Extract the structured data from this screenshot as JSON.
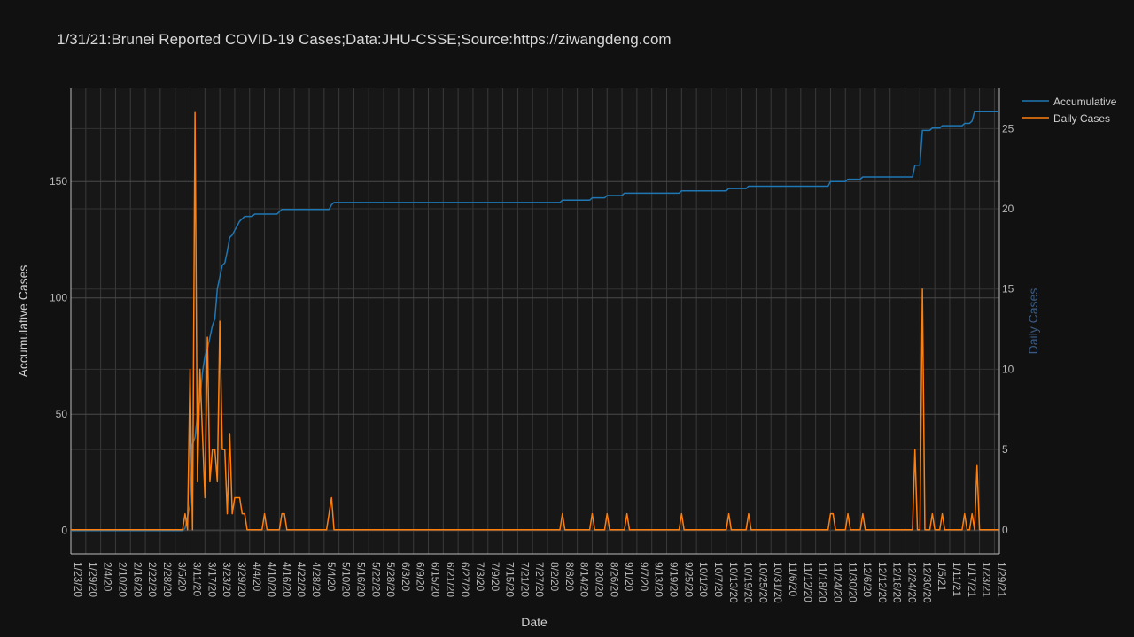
{
  "colors": {
    "background": "#111111",
    "plot_background": "#171717",
    "grid": "#3a3a3a",
    "text": "#d0d0d0",
    "tick_text": "#b8b8b8",
    "accumulative": "#1f77b4",
    "daily": "#ff7f0e",
    "y2_title": "#3a5a80"
  },
  "chart_data": {
    "type": "line",
    "title": "1/31/21:Brunei Reported COVID-19 Cases;Data:JHU-CSSE;Source:https://ziwangdeng.com",
    "xlabel": "Date",
    "ylabel": "Accumulative Cases",
    "y2label": "Daily Cases",
    "x_range": [
      "1/23/20",
      "1/31/21"
    ],
    "ylim": [
      -10,
      190
    ],
    "y2lim": [
      -1.5,
      27.5
    ],
    "y_ticks": [
      0,
      50,
      100,
      150
    ],
    "y2_ticks": [
      0,
      5,
      10,
      15,
      20,
      25
    ],
    "x_tick_labels": [
      "1/23/20",
      "1/29/20",
      "2/4/20",
      "2/10/20",
      "2/16/20",
      "2/22/20",
      "2/28/20",
      "3/5/20",
      "3/11/20",
      "3/17/20",
      "3/23/20",
      "3/29/20",
      "4/4/20",
      "4/10/20",
      "4/16/20",
      "4/22/20",
      "4/28/20",
      "5/4/20",
      "5/10/20",
      "5/16/20",
      "5/22/20",
      "5/28/20",
      "6/3/20",
      "6/9/20",
      "6/15/20",
      "6/21/20",
      "6/27/20",
      "7/3/20",
      "7/9/20",
      "7/15/20",
      "7/21/20",
      "7/27/20",
      "8/2/20",
      "8/8/20",
      "8/14/20",
      "8/20/20",
      "8/26/20",
      "9/1/20",
      "9/7/20",
      "9/13/20",
      "9/19/20",
      "9/25/20",
      "10/1/20",
      "10/7/20",
      "10/13/20",
      "10/19/20",
      "10/25/20",
      "10/31/20",
      "11/6/20",
      "11/12/20",
      "11/18/20",
      "11/24/20",
      "11/30/20",
      "12/6/20",
      "12/12/20",
      "12/18/20",
      "12/24/20",
      "12/30/20",
      "1/5/21",
      "1/11/21",
      "1/17/21",
      "1/23/21",
      "1/29/21"
    ],
    "grid": true,
    "legend_position": "top-right",
    "series": [
      {
        "name": "Accumulative",
        "axis": "y",
        "points": [
          [
            "1/23/20",
            0
          ],
          [
            "3/8/20",
            0
          ],
          [
            "3/9/20",
            1
          ],
          [
            "3/10/20",
            6
          ],
          [
            "3/11/20",
            11
          ],
          [
            "3/12/20",
            37
          ],
          [
            "3/13/20",
            40
          ],
          [
            "3/14/20",
            50
          ],
          [
            "3/15/20",
            56
          ],
          [
            "3/16/20",
            68
          ],
          [
            "3/17/20",
            75
          ],
          [
            "3/18/20",
            78
          ],
          [
            "3/19/20",
            83
          ],
          [
            "3/20/20",
            88
          ],
          [
            "3/21/20",
            91
          ],
          [
            "3/22/20",
            104
          ],
          [
            "3/23/20",
            109
          ],
          [
            "3/24/20",
            114
          ],
          [
            "3/25/20",
            115
          ],
          [
            "3/26/20",
            120
          ],
          [
            "3/27/20",
            126
          ],
          [
            "3/28/20",
            127
          ],
          [
            "3/29/20",
            129
          ],
          [
            "3/30/20",
            131
          ],
          [
            "3/31/20",
            133
          ],
          [
            "4/1/20",
            134
          ],
          [
            "4/2/20",
            135
          ],
          [
            "4/5/20",
            135
          ],
          [
            "4/6/20",
            136
          ],
          [
            "4/10/20",
            136
          ],
          [
            "4/15/20",
            136
          ],
          [
            "4/16/20",
            137
          ],
          [
            "4/17/20",
            138
          ],
          [
            "4/18/20",
            138
          ],
          [
            "4/25/20",
            138
          ],
          [
            "5/6/20",
            138
          ],
          [
            "5/7/20",
            140
          ],
          [
            "5/8/20",
            141
          ],
          [
            "8/7/20",
            141
          ],
          [
            "8/8/20",
            142
          ],
          [
            "8/19/20",
            142
          ],
          [
            "8/20/20",
            143
          ],
          [
            "8/25/20",
            143
          ],
          [
            "8/26/20",
            144
          ],
          [
            "9/1/20",
            144
          ],
          [
            "9/2/20",
            145
          ],
          [
            "9/24/20",
            145
          ],
          [
            "9/25/20",
            146
          ],
          [
            "10/13/20",
            146
          ],
          [
            "10/14/20",
            147
          ],
          [
            "10/21/20",
            147
          ],
          [
            "10/22/20",
            148
          ],
          [
            "11/23/20",
            148
          ],
          [
            "11/24/20",
            150
          ],
          [
            "11/30/20",
            150
          ],
          [
            "12/1/20",
            151
          ],
          [
            "12/6/20",
            151
          ],
          [
            "12/7/20",
            152
          ],
          [
            "12/27/20",
            152
          ],
          [
            "12/28/20",
            157
          ],
          [
            "12/30/20",
            157
          ],
          [
            "12/31/20",
            172
          ],
          [
            "1/3/21",
            172
          ],
          [
            "1/4/21",
            173
          ],
          [
            "1/7/21",
            173
          ],
          [
            "1/8/21",
            174
          ],
          [
            "1/16/21",
            174
          ],
          [
            "1/17/21",
            175
          ],
          [
            "1/19/21",
            175
          ],
          [
            "1/20/21",
            176
          ],
          [
            "1/21/21",
            180
          ],
          [
            "1/23/21",
            180
          ]
        ]
      },
      {
        "name": "Daily Cases",
        "axis": "y2",
        "points": [
          [
            "1/23/20",
            0
          ],
          [
            "3/8/20",
            0
          ],
          [
            "3/9/20",
            1
          ],
          [
            "3/10/20",
            0
          ],
          [
            "3/11/20",
            10
          ],
          [
            "3/12/20",
            0
          ],
          [
            "3/13/20",
            26
          ],
          [
            "3/14/20",
            3
          ],
          [
            "3/15/20",
            10
          ],
          [
            "3/16/20",
            6
          ],
          [
            "3/17/20",
            2
          ],
          [
            "3/18/20",
            12
          ],
          [
            "3/19/20",
            3
          ],
          [
            "3/20/20",
            5
          ],
          [
            "3/21/20",
            5
          ],
          [
            "3/22/20",
            3
          ],
          [
            "3/23/20",
            13
          ],
          [
            "3/24/20",
            5
          ],
          [
            "3/25/20",
            5
          ],
          [
            "3/26/20",
            1
          ],
          [
            "3/27/20",
            6
          ],
          [
            "3/28/20",
            1
          ],
          [
            "3/29/20",
            2
          ],
          [
            "3/30/20",
            2
          ],
          [
            "3/31/20",
            2
          ],
          [
            "4/1/20",
            1
          ],
          [
            "4/2/20",
            1
          ],
          [
            "4/3/20",
            0
          ],
          [
            "4/9/20",
            0
          ],
          [
            "4/10/20",
            1
          ],
          [
            "4/11/20",
            0
          ],
          [
            "4/16/20",
            0
          ],
          [
            "4/17/20",
            1
          ],
          [
            "4/18/20",
            1
          ],
          [
            "4/19/20",
            0
          ],
          [
            "5/5/20",
            0
          ],
          [
            "5/6/20",
            1
          ],
          [
            "5/7/20",
            2
          ],
          [
            "5/8/20",
            0
          ],
          [
            "8/7/20",
            0
          ],
          [
            "8/8/20",
            1
          ],
          [
            "8/9/20",
            0
          ],
          [
            "8/19/20",
            0
          ],
          [
            "8/20/20",
            1
          ],
          [
            "8/21/20",
            0
          ],
          [
            "8/25/20",
            0
          ],
          [
            "8/26/20",
            1
          ],
          [
            "8/27/20",
            0
          ],
          [
            "9/2/20",
            0
          ],
          [
            "9/3/20",
            1
          ],
          [
            "9/4/20",
            0
          ],
          [
            "9/24/20",
            0
          ],
          [
            "9/25/20",
            1
          ],
          [
            "9/26/20",
            0
          ],
          [
            "10/13/20",
            0
          ],
          [
            "10/14/20",
            1
          ],
          [
            "10/15/20",
            0
          ],
          [
            "10/21/20",
            0
          ],
          [
            "10/22/20",
            1
          ],
          [
            "10/23/20",
            0
          ],
          [
            "11/23/20",
            0
          ],
          [
            "11/24/20",
            1
          ],
          [
            "11/25/20",
            1
          ],
          [
            "11/26/20",
            0
          ],
          [
            "11/30/20",
            0
          ],
          [
            "12/1/20",
            1
          ],
          [
            "12/2/20",
            0
          ],
          [
            "12/6/20",
            0
          ],
          [
            "12/7/20",
            1
          ],
          [
            "12/8/20",
            0
          ],
          [
            "12/27/20",
            0
          ],
          [
            "12/28/20",
            5
          ],
          [
            "12/29/20",
            0
          ],
          [
            "12/30/20",
            0
          ],
          [
            "12/31/20",
            15
          ],
          [
            "1/1/21",
            0
          ],
          [
            "1/3/21",
            0
          ],
          [
            "1/4/21",
            1
          ],
          [
            "1/5/21",
            0
          ],
          [
            "1/7/21",
            0
          ],
          [
            "1/8/21",
            1
          ],
          [
            "1/9/21",
            0
          ],
          [
            "1/16/21",
            0
          ],
          [
            "1/17/21",
            1
          ],
          [
            "1/18/21",
            0
          ],
          [
            "1/19/21",
            0
          ],
          [
            "1/20/21",
            1
          ],
          [
            "1/21/21",
            0
          ],
          [
            "1/22/21",
            4
          ],
          [
            "1/23/21",
            0
          ]
        ]
      }
    ]
  }
}
